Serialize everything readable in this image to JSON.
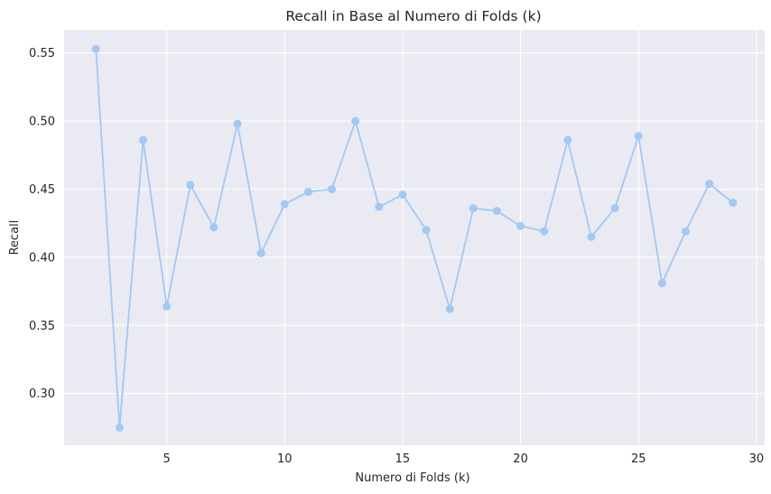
{
  "chart_data": {
    "type": "line",
    "title": "Recall in Base al Numero di Folds (k)",
    "xlabel": "Numero di Folds (k)",
    "ylabel": "Recall",
    "xlim": [
      0.65,
      30.35
    ],
    "ylim": [
      0.262,
      0.567
    ],
    "xticks": [
      5,
      10,
      15,
      20,
      25,
      30
    ],
    "yticks": [
      0.3,
      0.35,
      0.4,
      0.45,
      0.5,
      0.55
    ],
    "grid": true,
    "legend": "none",
    "series": [
      {
        "color": "#a1c9f4",
        "marker": "circle",
        "x": [
          2,
          3,
          4,
          5,
          6,
          7,
          8,
          9,
          10,
          11,
          12,
          13,
          14,
          15,
          16,
          17,
          18,
          19,
          20,
          21,
          22,
          23,
          24,
          25,
          26,
          27,
          28,
          29
        ],
        "y": [
          0.553,
          0.275,
          0.486,
          0.364,
          0.453,
          0.422,
          0.498,
          0.403,
          0.439,
          0.448,
          0.45,
          0.5,
          0.437,
          0.446,
          0.42,
          0.362,
          0.436,
          0.434,
          0.423,
          0.419,
          0.486,
          0.415,
          0.436,
          0.489,
          0.381,
          0.419,
          0.454,
          0.44
        ]
      }
    ]
  },
  "colors": {
    "plot_background": "#eaeaf2",
    "grid": "#ffffff",
    "text": "#262626"
  }
}
